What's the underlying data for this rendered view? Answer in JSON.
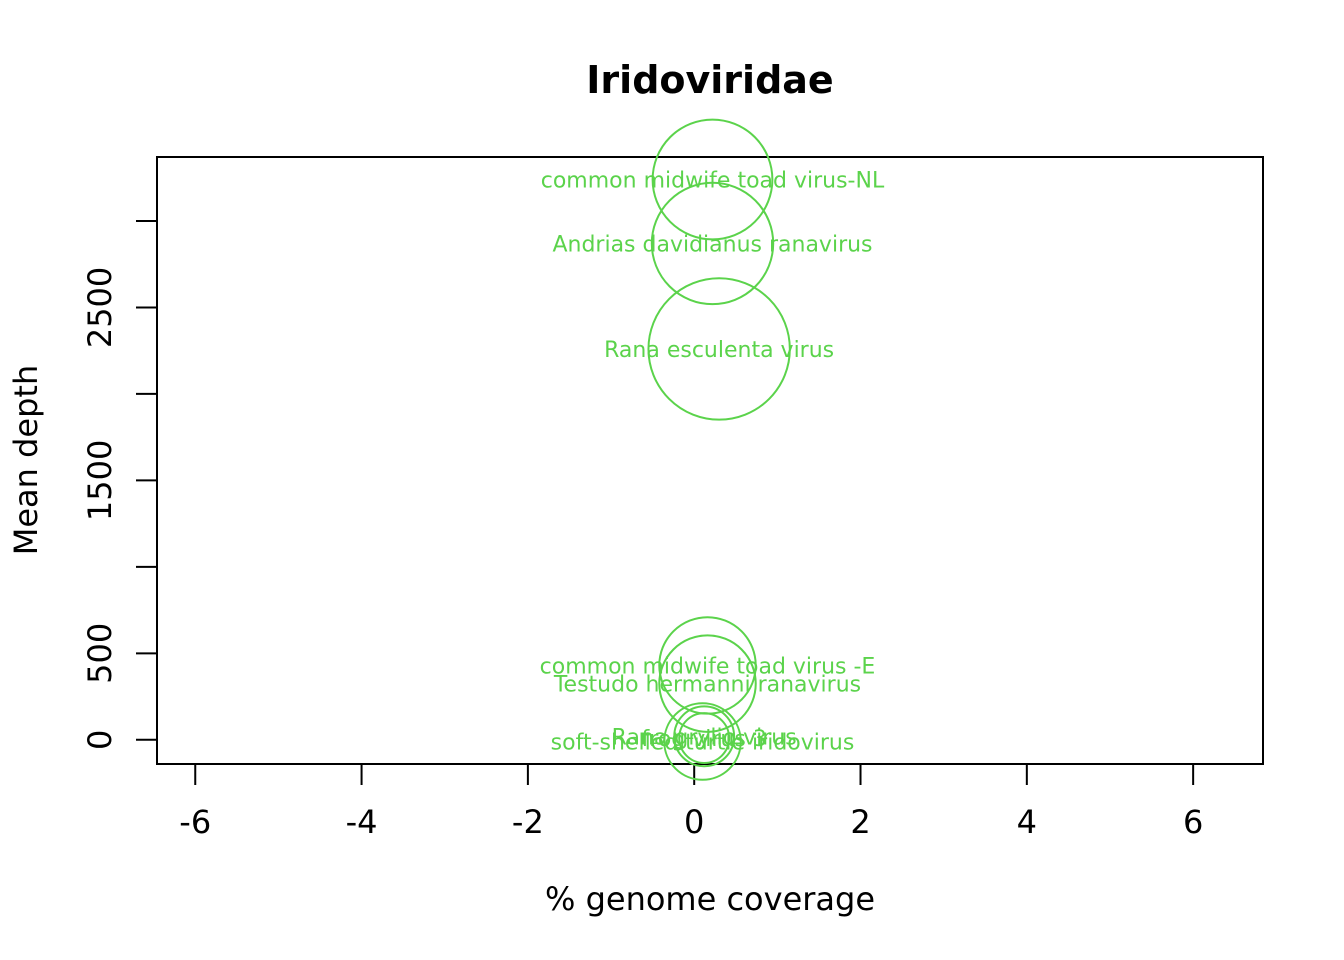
{
  "chart_data": {
    "type": "scatter",
    "title": "Iridoviridae",
    "xlabel": "% genome coverage",
    "ylabel": "Mean depth",
    "xlim": [
      -6.46,
      6.84
    ],
    "ylim": [
      -140,
      3370
    ],
    "x_ticks": [
      -6,
      -4,
      -2,
      0,
      2,
      4,
      6
    ],
    "y_ticks": [
      0,
      500,
      1000,
      1500,
      2000,
      2500,
      3000
    ],
    "y_tick_labels": [
      "0",
      "500",
      "",
      "1500",
      "",
      "2500",
      ""
    ],
    "marker_color": "#5BD34B",
    "points": [
      {
        "label": "common midwife toad virus-NL",
        "x": 0.22,
        "y": 3240,
        "size": 0.72
      },
      {
        "label": "Andrias davidianus ranavirus",
        "x": 0.22,
        "y": 2870,
        "size": 0.73
      },
      {
        "label": "Rana esculenta virus",
        "x": 0.3,
        "y": 2260,
        "size": 0.85
      },
      {
        "label": "common midwife toad virus -E",
        "x": 0.16,
        "y": 430,
        "size": 0.58
      },
      {
        "label": "Testudo hermanni ranavirus",
        "x": 0.16,
        "y": 325,
        "size": 0.58
      },
      {
        "label": "Rana grylio virus",
        "x": 0.12,
        "y": 20,
        "size": 0.36
      },
      {
        "label": "frog virus 3",
        "x": 0.12,
        "y": 10,
        "size": 0.3
      },
      {
        "label": "soft-shelled turtle iridovirus",
        "x": 0.1,
        "y": -10,
        "size": 0.46
      }
    ]
  }
}
